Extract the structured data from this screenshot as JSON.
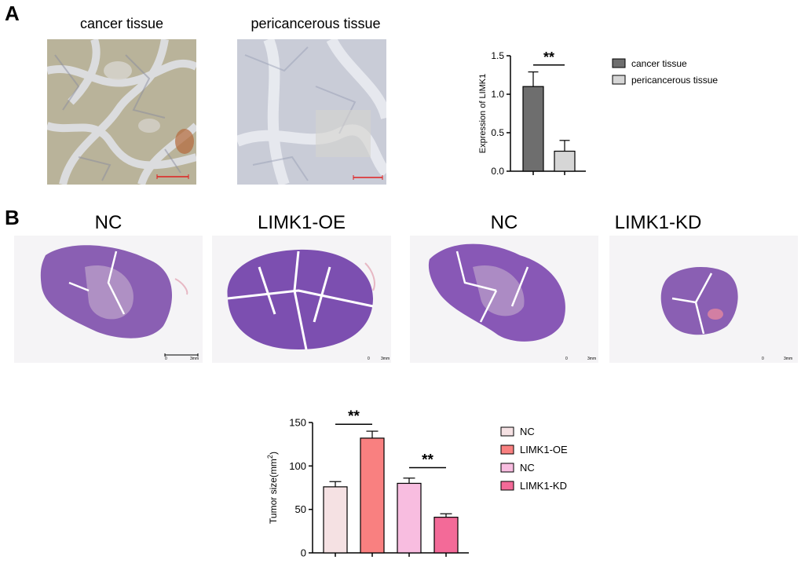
{
  "panels": {
    "a": "A",
    "b": "B"
  },
  "panel_a": {
    "images": [
      {
        "title": "cancer tissue"
      },
      {
        "title": "pericancerous tissue"
      }
    ]
  },
  "panel_b": {
    "sections": [
      {
        "title": "NC",
        "scale_zero": "0",
        "scale_label": "3mm"
      },
      {
        "title": "LIMK1-OE",
        "scale_zero": "0",
        "scale_label": "3mm"
      },
      {
        "title": "NC",
        "scale_zero": "0",
        "scale_label": "3mm"
      },
      {
        "title": "LIMK1-KD",
        "scale_zero": "0",
        "scale_label": "3mm"
      }
    ]
  },
  "chart_data": [
    {
      "type": "bar",
      "title": "",
      "ylabel": "Expression of LIMK1",
      "xlabel": "",
      "ylim": [
        0,
        1.5
      ],
      "yticks": [
        "0.0",
        "0.5",
        "1.0",
        "1.5"
      ],
      "categories": [
        "cancer tissue",
        "pericancerous tissue"
      ],
      "values": [
        1.1,
        0.26
      ],
      "errors": [
        0.19,
        0.14
      ],
      "colors": [
        "#6e6e6e",
        "#d6d6d6"
      ],
      "legend": [
        "cancer tissue",
        "pericancerous tissue"
      ],
      "legend_position": "right",
      "significance": "**"
    },
    {
      "type": "bar",
      "title": "",
      "ylabel": "Tumor size(mm",
      "ylabel_sup": "2",
      "ylabel_close": ")",
      "xlabel": "",
      "ylim": [
        0,
        150
      ],
      "yticks": [
        "0",
        "50",
        "100",
        "150"
      ],
      "categories": [
        "NC",
        "LIMK1-OE",
        "NC",
        "LIMK1-KD"
      ],
      "values": [
        76,
        132,
        80,
        41
      ],
      "errors": [
        6,
        8,
        6,
        4
      ],
      "colors": [
        "#f5e1e3",
        "#f98080",
        "#f8bde0",
        "#f36a98"
      ],
      "legend": [
        "NC",
        "LIMK1-OE",
        "NC",
        "LIMK1-KD"
      ],
      "legend_position": "right",
      "significance": [
        "**",
        "**"
      ]
    }
  ]
}
